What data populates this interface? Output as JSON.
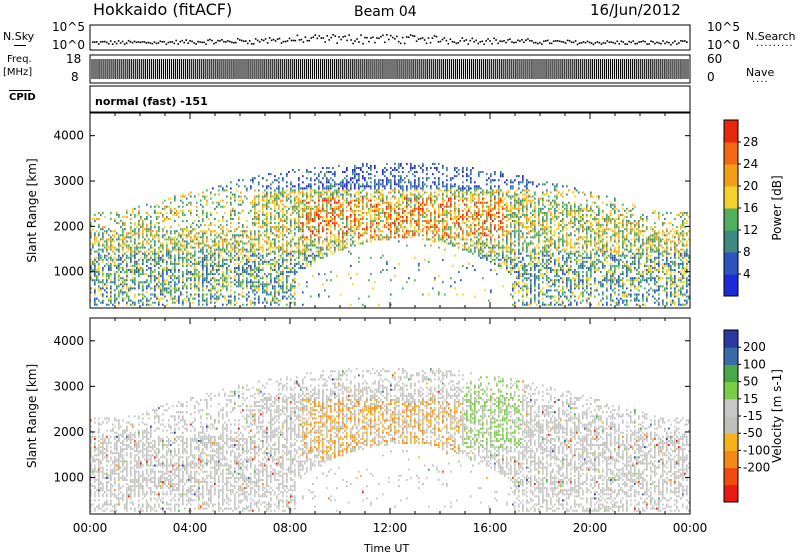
{
  "header": {
    "title": "Hokkaido (fitACF)",
    "beam": "Beam 04",
    "date": "16/Jun/2012"
  },
  "left_labels": {
    "nsky": "N.Sky",
    "freq": "Freq.",
    "mhz": "[MHz]",
    "cpid": "CPID"
  },
  "right_labels": {
    "nsearch": "N.Search",
    "nave": "Nave"
  },
  "cpid_text": "normal (fast) -151",
  "xlabel": "Time UT",
  "colors": {
    "power": [
      "#1e2ad8",
      "#2d55c0",
      "#3d8a80",
      "#4fb060",
      "#f3d22b",
      "#f3a019",
      "#f26a10",
      "#e8280a"
    ],
    "velocity": [
      "#e81a12",
      "#f04a0f",
      "#f28a15",
      "#f6b21b",
      "#c0c0b8",
      "#c8c8c8",
      "#7acd44",
      "#4aa84a",
      "#3a6aa8",
      "#2a3aa0"
    ]
  },
  "chart_data": [
    {
      "type": "scatter",
      "title": "N.Sky / N.Search",
      "ylabel_left": "N.Sky",
      "ylabel_right": "N.Search",
      "yticks_left": [
        "10^5",
        "10^0"
      ],
      "yticks_right": [
        "10^5",
        "10^0"
      ],
      "x": [
        "00:00",
        "04:00",
        "08:00",
        "12:00",
        "16:00",
        "20:00",
        "00:00"
      ]
    },
    {
      "type": "line",
      "title": "Freq / Nave",
      "ylabel_left": "Freq. [MHz]",
      "ylabel_right": "Nave",
      "yticks_left": [
        18,
        8
      ],
      "yticks_right": [
        60,
        0
      ],
      "ylim_left": [
        8,
        18
      ],
      "ylim_right": [
        0,
        60
      ]
    },
    {
      "type": "heatmap",
      "title": "Power",
      "ylabel": "Slant Range [km]",
      "yticks": [
        1000,
        2000,
        3000,
        4000
      ],
      "ylim": [
        200,
        4500
      ],
      "xticks": [
        "00:00",
        "04:00",
        "08:00",
        "12:00",
        "16:00",
        "20:00",
        "00:00"
      ],
      "colorbar_label": "Power [dB]",
      "colorbar_ticks": [
        4,
        8,
        12,
        16,
        20,
        24,
        28
      ]
    },
    {
      "type": "heatmap",
      "title": "Velocity",
      "ylabel": "Slant Range [km]",
      "yticks": [
        1000,
        2000,
        3000,
        4000
      ],
      "ylim": [
        200,
        4500
      ],
      "xticks": [
        "00:00",
        "04:00",
        "08:00",
        "12:00",
        "16:00",
        "20:00",
        "00:00"
      ],
      "colorbar_label": "Velocity [m s-1]",
      "colorbar_ticks": [
        200,
        100,
        50,
        15,
        -15,
        -50,
        -100,
        -200
      ]
    }
  ]
}
